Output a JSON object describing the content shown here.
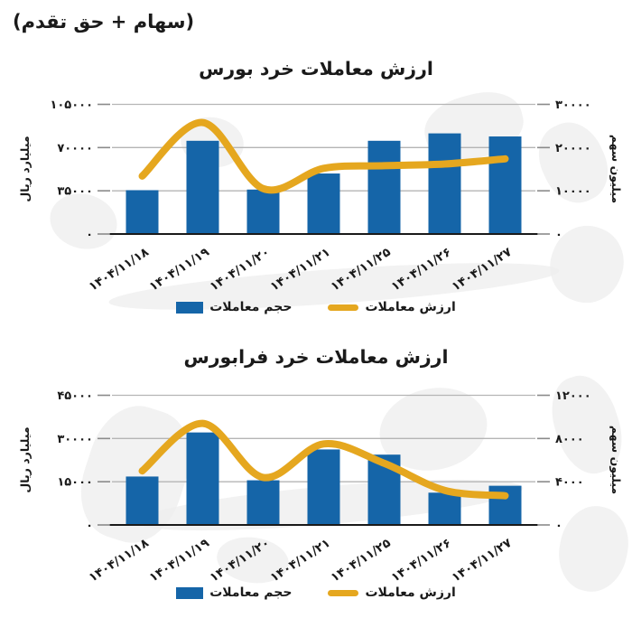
{
  "header": {
    "note": "(سهام + حق تقدم)"
  },
  "colors": {
    "bar": "#1565A8",
    "line": "#E5A71F",
    "grid": "#B5B5B5",
    "axis": "#1A1A1A",
    "tick": "#8A8A8A",
    "text": "#1A1A1A",
    "watermark": "#EDEDED"
  },
  "chart_data": [
    {
      "type": "bar+line",
      "title": "ارزش معاملات خرد بورس",
      "categories": [
        "۱۴۰۴/۱۱/۱۸",
        "۱۴۰۴/۱۱/۱۹",
        "۱۴۰۴/۱۱/۲۰",
        "۱۴۰۴/۱۱/۲۱",
        "۱۴۰۴/۱۱/۲۵",
        "۱۴۰۴/۱۱/۲۶",
        "۱۴۰۴/۱۱/۲۷"
      ],
      "series": [
        {
          "name": "حجم معاملات",
          "kind": "bar",
          "axis": "left",
          "values": [
            35500,
            75500,
            36000,
            49000,
            75500,
            81500,
            79000
          ]
        },
        {
          "name": "ارزش معاملات",
          "kind": "line",
          "axis": "right",
          "values": [
            13400,
            25800,
            10500,
            15200,
            15800,
            16200,
            17400
          ]
        }
      ],
      "left_axis": {
        "label": "میلیارد ریال",
        "max": 105000,
        "ticks": [
          0,
          35000,
          70000,
          105000
        ],
        "tick_labels": [
          "۰",
          "۳۵۰۰۰",
          "۷۰۰۰۰",
          "۱۰۵۰۰۰"
        ]
      },
      "right_axis": {
        "label": "میلیون سهم",
        "max": 30000,
        "ticks": [
          0,
          10000,
          20000,
          30000
        ],
        "tick_labels": [
          "۰",
          "۱۰۰۰۰",
          "۲۰۰۰۰",
          "۳۰۰۰۰"
        ]
      },
      "legend": {
        "volume": "حجم معاملات",
        "value": "ارزش معاملات"
      },
      "grid": true,
      "legend_position": "bottom-center"
    },
    {
      "type": "bar+line",
      "title": "ارزش معاملات خرد فرابورس",
      "categories": [
        "۱۴۰۴/۱۱/۱۸",
        "۱۴۰۴/۱۱/۱۹",
        "۱۴۰۴/۱۱/۲۰",
        "۱۴۰۴/۱۱/۲۱",
        "۱۴۰۴/۱۱/۲۵",
        "۱۴۰۴/۱۱/۲۶",
        "۱۴۰۴/۱۱/۲۷"
      ],
      "series": [
        {
          "name": "حجم معاملات",
          "kind": "bar",
          "axis": "left",
          "values": [
            16800,
            32100,
            15500,
            26200,
            24400,
            11200,
            13600
          ]
        },
        {
          "name": "ارزش معاملات",
          "kind": "line",
          "axis": "right",
          "values": [
            5000,
            9400,
            4400,
            7500,
            5700,
            3200,
            2700
          ]
        }
      ],
      "left_axis": {
        "label": "میلیارد ریال",
        "max": 45000,
        "ticks": [
          0,
          15000,
          30000,
          45000
        ],
        "tick_labels": [
          "۰",
          "۱۵۰۰۰",
          "۳۰۰۰۰",
          "۴۵۰۰۰"
        ]
      },
      "right_axis": {
        "label": "میلیون سهم",
        "max": 12000,
        "ticks": [
          0,
          4000,
          8000,
          12000
        ],
        "tick_labels": [
          "۰",
          "۴۰۰۰",
          "۸۰۰۰",
          "۱۲۰۰۰"
        ]
      },
      "legend": {
        "volume": "حجم معاملات",
        "value": "ارزش معاملات"
      },
      "grid": true,
      "legend_position": "bottom-center"
    }
  ]
}
